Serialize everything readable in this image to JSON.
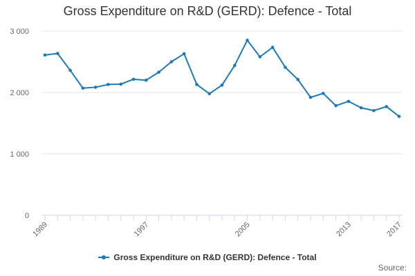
{
  "chart_data": {
    "type": "line",
    "title": "Gross Expenditure on R&D (GERD): Defence - Total",
    "xlabel": "",
    "ylabel": "",
    "x": [
      1989,
      1990,
      1991,
      1992,
      1993,
      1994,
      1995,
      1996,
      1997,
      1998,
      1999,
      2000,
      2001,
      2002,
      2003,
      2004,
      2005,
      2006,
      2007,
      2008,
      2009,
      2010,
      2011,
      2012,
      2013,
      2014,
      2015,
      2016,
      2017
    ],
    "series": [
      {
        "name": "Gross Expenditure on R&D (GERD): Defence - Total",
        "color": "#1a7ab7",
        "values": [
          2610,
          2635,
          2360,
          2070,
          2085,
          2130,
          2135,
          2215,
          2200,
          2330,
          2500,
          2630,
          2130,
          1980,
          2120,
          2440,
          2850,
          2580,
          2735,
          2410,
          2210,
          1920,
          1985,
          1785,
          1855,
          1750,
          1705,
          1770,
          1610
        ]
      }
    ],
    "ylim": [
      0,
      3000
    ],
    "y_ticks": [
      0,
      1000,
      2000,
      3000
    ],
    "y_tick_labels": [
      "0",
      "1 000",
      "2 000",
      "3 000"
    ],
    "x_ticks": [
      "1989",
      "1997",
      "2005",
      "2013",
      "2017"
    ],
    "grid": true,
    "legend_position": "bottom"
  },
  "credit": "Source:"
}
